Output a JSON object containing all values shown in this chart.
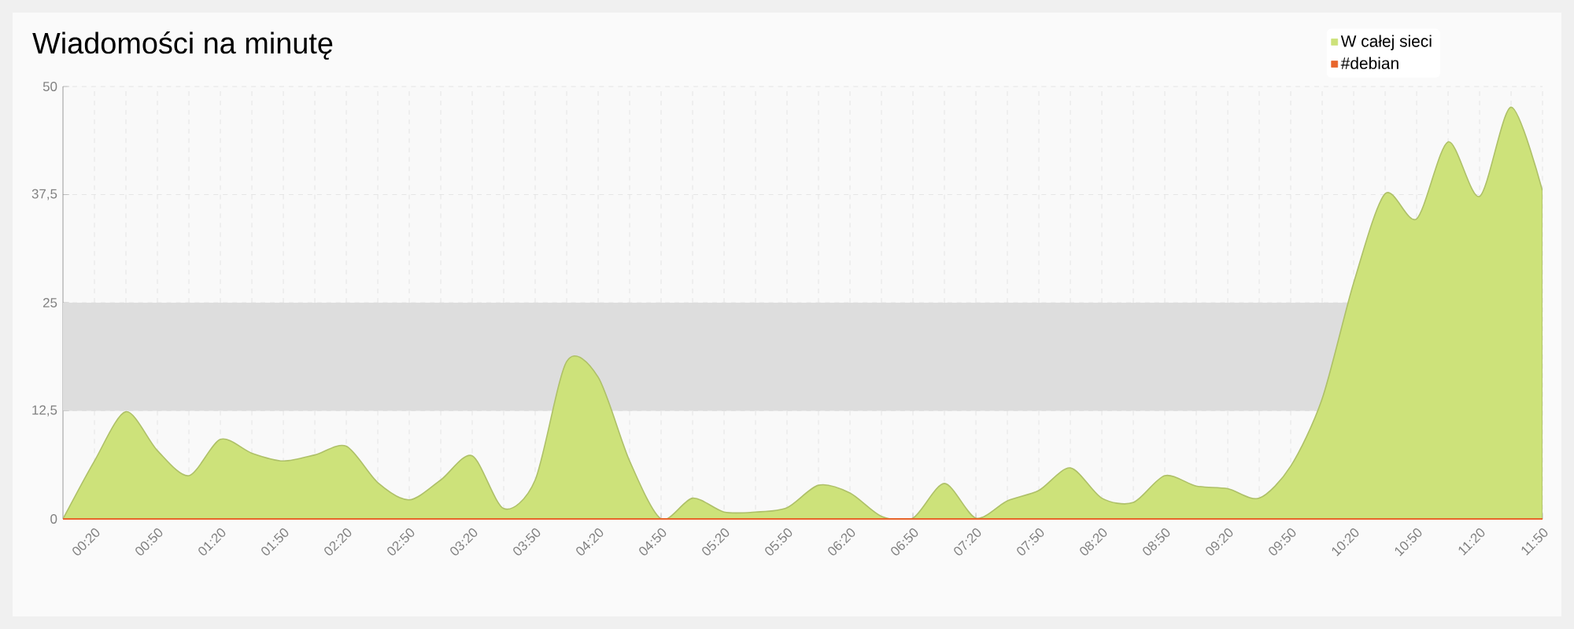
{
  "chart_data": {
    "type": "area",
    "title": "Wiadomości na minutę",
    "x": [
      0.0833,
      0.3333,
      0.5833,
      0.8333,
      1.0833,
      1.3333,
      1.5833,
      1.8333,
      2.0833,
      2.3333,
      2.5833,
      2.8333,
      3.0833,
      3.3333,
      3.5833,
      3.8333,
      4.0833,
      4.3333,
      4.5833,
      4.8333,
      5.0833,
      5.3333,
      5.5833,
      5.8333,
      6.0833,
      6.3333,
      6.5833,
      6.8333,
      7.0833,
      7.3333,
      7.5833,
      7.8333,
      8.0833,
      8.3333,
      8.5833,
      8.8333,
      9.0833,
      9.3333,
      9.5833,
      9.8333,
      10.0833,
      10.3333,
      10.5833,
      10.8333,
      11.0833,
      11.3333,
      11.5833,
      11.8333
    ],
    "series": [
      {
        "name": "W całej sieci",
        "color": "#cde27a",
        "values": [
          0,
          6.7,
          12.4,
          7.9,
          5.0,
          9.2,
          7.6,
          6.7,
          7.4,
          8.4,
          4.2,
          2.2,
          4.5,
          7.3,
          1.2,
          4.5,
          18.2,
          16.4,
          6.7,
          0,
          2.4,
          0.8,
          0.8,
          1.3,
          3.9,
          3.0,
          0.3,
          0.1,
          4.1,
          0.1,
          2.1,
          3.3,
          5.9,
          2.4,
          1.9,
          5.0,
          3.8,
          3.5,
          2.4,
          6.1,
          13.9,
          27.3,
          37.6,
          34.7,
          43.6,
          37.3,
          47.6,
          37.9
        ]
      },
      {
        "name": "#debian",
        "type": "line",
        "color": "#e8652b",
        "values": [
          0,
          0,
          0,
          0,
          0,
          0,
          0,
          0,
          0,
          0,
          0,
          0,
          0,
          0,
          0,
          0,
          0,
          0,
          0,
          0,
          0,
          0,
          0,
          0,
          0,
          0,
          0,
          0,
          0,
          0,
          0,
          0,
          0,
          0,
          0,
          0,
          0,
          0,
          0,
          0,
          0,
          0,
          0,
          0,
          0,
          0,
          0,
          0
        ]
      }
    ],
    "xlim": [
      0.0833,
      11.8333
    ],
    "xticks": [
      {
        "value": 0.3333,
        "label": "00:20"
      },
      {
        "value": 0.8333,
        "label": "00:50"
      },
      {
        "value": 1.3333,
        "label": "01:20"
      },
      {
        "value": 1.8333,
        "label": "01:50"
      },
      {
        "value": 2.3333,
        "label": "02:20"
      },
      {
        "value": 2.8333,
        "label": "02:50"
      },
      {
        "value": 3.3333,
        "label": "03:20"
      },
      {
        "value": 3.8333,
        "label": "03:50"
      },
      {
        "value": 4.3333,
        "label": "04:20"
      },
      {
        "value": 4.8333,
        "label": "04:50"
      },
      {
        "value": 5.3333,
        "label": "05:20"
      },
      {
        "value": 5.8333,
        "label": "05:50"
      },
      {
        "value": 6.3333,
        "label": "06:20"
      },
      {
        "value": 6.8333,
        "label": "06:50"
      },
      {
        "value": 7.3333,
        "label": "07:20"
      },
      {
        "value": 7.8333,
        "label": "07:50"
      },
      {
        "value": 8.3333,
        "label": "08:20"
      },
      {
        "value": 8.8333,
        "label": "08:50"
      },
      {
        "value": 9.3333,
        "label": "09:20"
      },
      {
        "value": 9.8333,
        "label": "09:50"
      },
      {
        "value": 10.3333,
        "label": "10:20"
      },
      {
        "value": 10.8333,
        "label": "10:50"
      },
      {
        "value": 11.3333,
        "label": "11:20"
      },
      {
        "value": 11.8333,
        "label": "11:50"
      }
    ],
    "ylim": [
      0,
      50
    ],
    "yticks": [
      0,
      {
        "value": 12.5,
        "label": "12,5"
      },
      25,
      {
        "value": 37.5,
        "label": "37,5"
      },
      50
    ],
    "bands": [
      {
        "axis": "y",
        "from": 12.5,
        "to": 25,
        "color": "#dddddd"
      }
    ],
    "grid": true,
    "legend": "top right",
    "marker": "none",
    "line_style": "solid"
  }
}
